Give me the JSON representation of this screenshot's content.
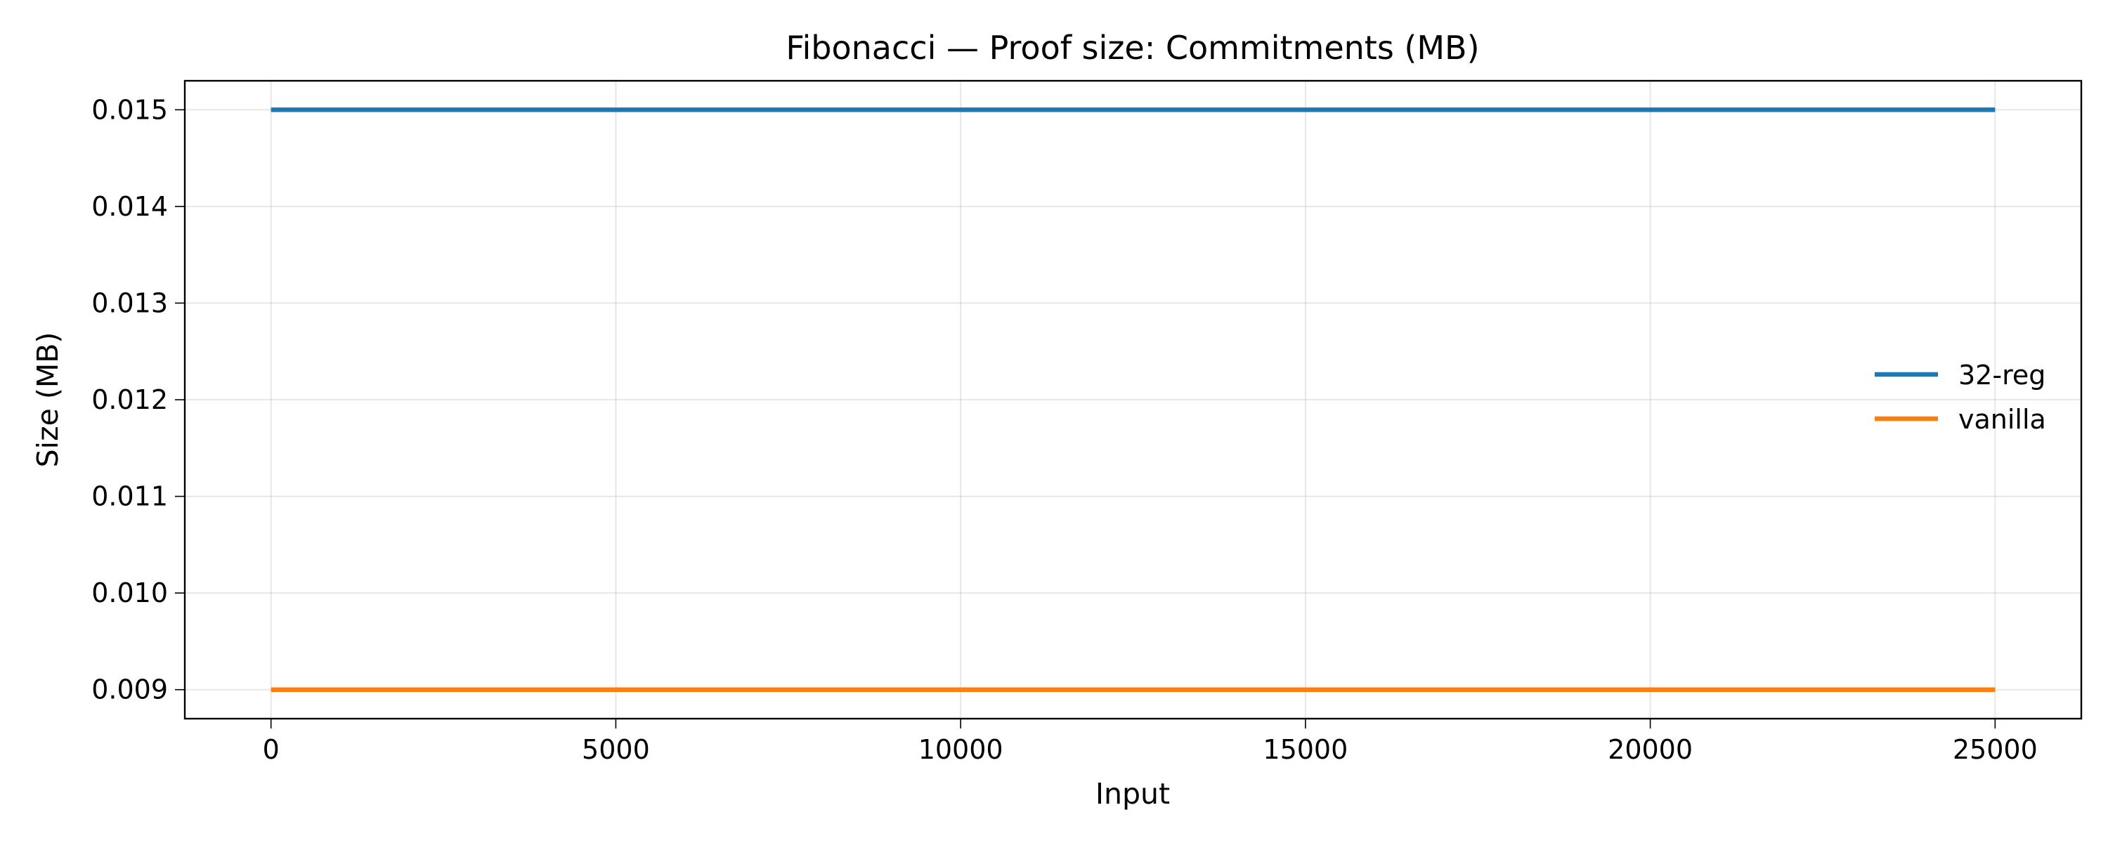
{
  "chart_data": {
    "type": "line",
    "title": "Fibonacci — Proof size: Commitments (MB)",
    "xlabel": "Input",
    "ylabel": "Size (MB)",
    "xlim": [
      -1250,
      26250
    ],
    "ylim": [
      0.0087,
      0.0153
    ],
    "x_ticks": [
      0,
      5000,
      10000,
      15000,
      20000,
      25000
    ],
    "x_tick_labels": [
      "0",
      "5000",
      "10000",
      "15000",
      "20000",
      "25000"
    ],
    "y_ticks": [
      0.009,
      0.01,
      0.011,
      0.012,
      0.013,
      0.014,
      0.015
    ],
    "y_tick_labels": [
      "0.009",
      "0.010",
      "0.011",
      "0.012",
      "0.013",
      "0.014",
      "0.015"
    ],
    "grid": true,
    "legend_position": "center-right",
    "series": [
      {
        "name": "32-reg",
        "color": "#1f77b4",
        "x": [
          0,
          25000
        ],
        "y": [
          0.015,
          0.015
        ]
      },
      {
        "name": "vanilla",
        "color": "#ff7f0e",
        "x": [
          0,
          25000
        ],
        "y": [
          0.009,
          0.009
        ]
      }
    ]
  }
}
